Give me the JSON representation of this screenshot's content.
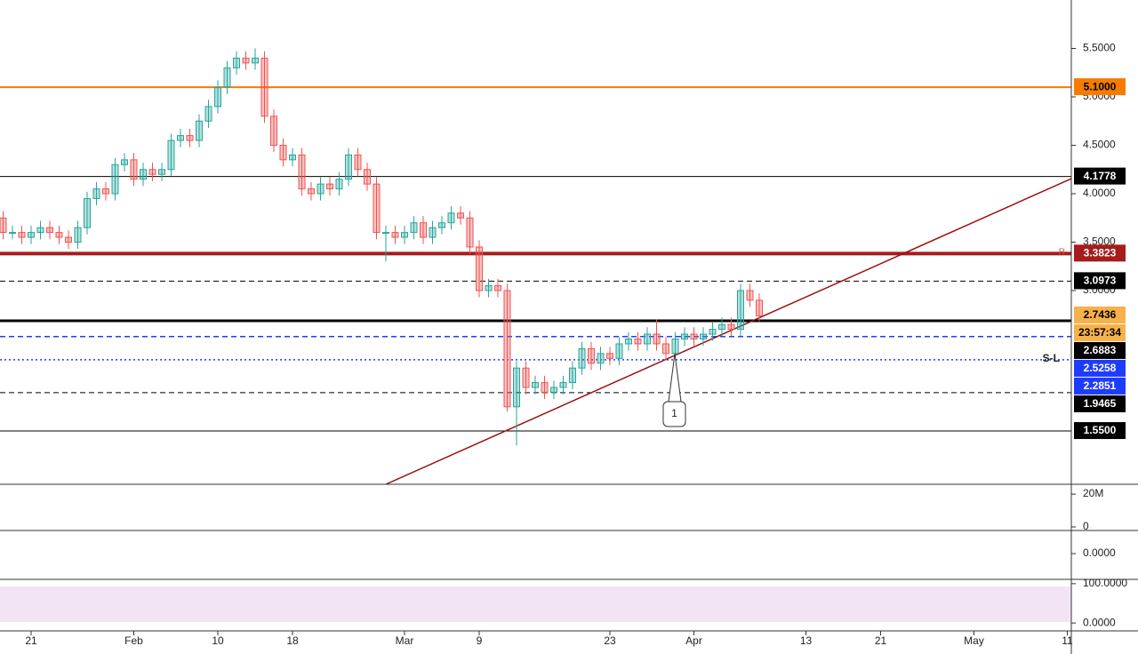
{
  "chart_data": {
    "type": "candlestick",
    "x": [
      "Jan 17",
      "Jan 18",
      "Jan 19",
      "Jan 20",
      "Jan 21",
      "Jan 22",
      "Jan 23",
      "Jan 24",
      "Jan 25",
      "Jan 26",
      "Jan 27",
      "Jan 28",
      "Jan 29",
      "Jan 30",
      "Jan 31",
      "Feb 1",
      "Feb 2",
      "Feb 3",
      "Feb 4",
      "Feb 5",
      "Feb 6",
      "Feb 7",
      "Feb 8",
      "Feb 9",
      "Feb 10",
      "Feb 11",
      "Feb 12",
      "Feb 13",
      "Feb 14",
      "Feb 15",
      "Feb 16",
      "Feb 17",
      "Feb 18",
      "Feb 19",
      "Feb 20",
      "Feb 21",
      "Feb 22",
      "Feb 23",
      "Feb 24",
      "Feb 25",
      "Feb 26",
      "Feb 27",
      "Feb 28",
      "Feb 29",
      "Mar 1",
      "Mar 2",
      "Mar 3",
      "Mar 4",
      "Mar 5",
      "Mar 6",
      "Mar 7",
      "Mar 8",
      "Mar 9",
      "Mar 10",
      "Mar 11",
      "Mar 12",
      "Mar 13",
      "Mar 14",
      "Mar 15",
      "Mar 16",
      "Mar 17",
      "Mar 18",
      "Mar 19",
      "Mar 20",
      "Mar 21",
      "Mar 22",
      "Mar 23",
      "Mar 24",
      "Mar 25",
      "Mar 26",
      "Mar 27",
      "Mar 28",
      "Mar 29",
      "Mar 30",
      "Mar 31",
      "Apr 1",
      "Apr 2",
      "Apr 3",
      "Apr 4",
      "Apr 5",
      "Apr 6",
      "Apr 7",
      "Apr 8"
    ],
    "open": [
      3.85,
      3.75,
      3.6,
      3.6,
      3.55,
      3.6,
      3.65,
      3.6,
      3.55,
      3.5,
      3.65,
      3.95,
      4.05,
      4.0,
      4.3,
      4.35,
      4.15,
      4.25,
      4.2,
      4.25,
      4.55,
      4.6,
      4.55,
      4.75,
      4.9,
      5.1,
      5.3,
      5.4,
      5.35,
      5.4,
      4.8,
      4.5,
      4.35,
      4.4,
      4.05,
      4.0,
      4.1,
      4.05,
      4.15,
      4.4,
      4.25,
      4.1,
      3.6,
      3.6,
      3.55,
      3.6,
      3.7,
      3.55,
      3.65,
      3.7,
      3.8,
      3.75,
      3.45,
      3.0,
      3.05,
      3.0,
      1.8,
      2.2,
      2.0,
      2.05,
      1.95,
      2.0,
      2.05,
      2.2,
      2.4,
      2.25,
      2.35,
      2.3,
      2.45,
      2.5,
      2.45,
      2.55,
      2.45,
      2.35,
      2.5,
      2.55,
      2.5,
      2.55,
      2.6,
      2.65,
      2.6,
      3.0,
      2.9
    ],
    "high": [
      3.92,
      3.82,
      3.67,
      3.67,
      3.67,
      3.72,
      3.72,
      3.67,
      3.62,
      3.72,
      4.02,
      4.12,
      4.12,
      4.37,
      4.42,
      4.42,
      4.32,
      4.32,
      4.32,
      4.62,
      4.67,
      4.67,
      4.82,
      4.97,
      5.17,
      5.37,
      5.47,
      5.47,
      5.5,
      5.47,
      4.87,
      4.57,
      4.47,
      4.47,
      4.12,
      4.17,
      4.17,
      4.22,
      4.47,
      4.47,
      4.32,
      4.17,
      3.67,
      3.67,
      3.67,
      3.77,
      3.77,
      3.72,
      3.77,
      3.87,
      3.87,
      3.82,
      3.52,
      3.12,
      3.12,
      3.07,
      2.27,
      2.27,
      2.12,
      2.12,
      2.07,
      2.12,
      2.27,
      2.47,
      2.47,
      2.42,
      2.42,
      2.52,
      2.57,
      2.57,
      2.62,
      2.7,
      2.52,
      2.57,
      2.62,
      2.62,
      2.62,
      2.67,
      2.72,
      2.72,
      3.07,
      3.07,
      2.97
    ],
    "low": [
      3.68,
      3.53,
      3.53,
      3.48,
      3.48,
      3.53,
      3.53,
      3.48,
      3.43,
      3.43,
      3.58,
      3.88,
      3.93,
      3.93,
      4.23,
      4.08,
      4.08,
      4.13,
      4.13,
      4.18,
      4.48,
      4.48,
      4.48,
      4.68,
      4.83,
      5.03,
      5.23,
      5.28,
      5.28,
      4.73,
      4.43,
      4.28,
      4.28,
      3.98,
      3.93,
      3.93,
      3.98,
      3.98,
      4.08,
      4.18,
      4.03,
      3.53,
      3.3,
      3.48,
      3.48,
      3.53,
      3.48,
      3.48,
      3.58,
      3.63,
      3.68,
      3.38,
      2.93,
      2.93,
      2.93,
      1.75,
      1.4,
      1.93,
      1.93,
      1.88,
      1.88,
      1.93,
      1.98,
      2.13,
      2.18,
      2.18,
      2.23,
      2.23,
      2.38,
      2.38,
      2.38,
      2.38,
      2.28,
      2.28,
      2.43,
      2.43,
      2.43,
      2.48,
      2.53,
      2.53,
      2.53,
      2.83,
      2.68
    ],
    "close": [
      3.75,
      3.6,
      3.6,
      3.55,
      3.6,
      3.65,
      3.6,
      3.55,
      3.5,
      3.65,
      3.95,
      4.05,
      4.0,
      4.3,
      4.35,
      4.15,
      4.25,
      4.2,
      4.25,
      4.55,
      4.6,
      4.55,
      4.75,
      4.9,
      5.1,
      5.3,
      5.4,
      5.35,
      5.4,
      4.8,
      4.5,
      4.35,
      4.4,
      4.05,
      4.0,
      4.1,
      4.05,
      4.15,
      4.4,
      4.25,
      4.1,
      3.6,
      3.6,
      3.55,
      3.6,
      3.7,
      3.55,
      3.65,
      3.7,
      3.8,
      3.75,
      3.45,
      3.0,
      3.05,
      3.0,
      1.8,
      2.2,
      2.0,
      2.05,
      1.95,
      2.0,
      2.05,
      2.2,
      2.4,
      2.25,
      2.35,
      2.3,
      2.45,
      2.5,
      2.45,
      2.55,
      2.45,
      2.35,
      2.5,
      2.55,
      2.5,
      2.55,
      2.6,
      2.65,
      2.6,
      3.0,
      2.9,
      2.74
    ],
    "up_color": "#26a69a",
    "down_color": "#ef5350",
    "ylim": [
      1,
      6
    ],
    "yticks": [
      {
        "value": 5.5,
        "label": "5.5000"
      },
      {
        "value": 5,
        "label": "5.0000"
      },
      {
        "value": 4.5,
        "label": "4.5000"
      },
      {
        "value": 4,
        "label": "4.0000"
      },
      {
        "value": 3.5,
        "label": "3.5000"
      },
      {
        "value": 3,
        "label": "3.0000"
      }
    ],
    "xticks": [
      {
        "value": "Jan 21",
        "label": "21"
      },
      {
        "value": "Feb 1",
        "label": "Feb"
      },
      {
        "value": "Feb 10",
        "label": "10"
      },
      {
        "value": "Feb 18",
        "label": "18"
      },
      {
        "value": "Mar 1",
        "label": "Mar"
      },
      {
        "value": "Mar 9",
        "label": "9"
      },
      {
        "value": "Mar 23",
        "label": "23"
      },
      {
        "value": "Apr 1",
        "label": "Apr"
      },
      {
        "value": "Apr 13",
        "label": "13"
      },
      {
        "value": "Apr 21",
        "label": "21"
      },
      {
        "value": "May 1",
        "label": "May"
      },
      {
        "value": "May 11",
        "label": "11"
      }
    ],
    "levels": [
      {
        "value": 5.1,
        "label": "5.1000",
        "color": "#f57c00",
        "text_color": "#000",
        "style": "solid",
        "width": 2,
        "line": true
      },
      {
        "value": 4.1778,
        "label": "4.1778",
        "color": "#000",
        "text_color": "#fff",
        "style": "solid",
        "width": 1,
        "line": true
      },
      {
        "value": 3.3823,
        "label": "3.3823",
        "color": "#a61c1c",
        "text_color": "#fff",
        "style": "solid",
        "width": 4,
        "line": true
      },
      {
        "value": 3.0973,
        "label": "3.0973",
        "color": "#000",
        "text_color": "#fff",
        "style": "dashed",
        "width": 1,
        "line": true
      },
      {
        "value": 2.7436,
        "label": "2.7436",
        "color": "#f7b14a",
        "text_color": "#000",
        "style": "solid",
        "width": 1,
        "line": false
      },
      {
        "value": 2.6883,
        "label": "2.6883",
        "color": "#000",
        "text_color": "#fff",
        "style": "solid",
        "width": 3,
        "line": true
      },
      {
        "value": 2.5258,
        "label": "2.5258",
        "color": "#1e3cff",
        "text_color": "#fff",
        "style": "dashed",
        "width": 1.5,
        "line": true
      },
      {
        "value": 2.2851,
        "label": "2.2851",
        "color": "#1e3cff",
        "text_color": "#fff",
        "style": "dotted",
        "width": 1.5,
        "line": true
      },
      {
        "value": 1.9465,
        "label": "1.9465",
        "color": "#000",
        "text_color": "#fff",
        "style": "dashed",
        "width": 1,
        "line": true
      },
      {
        "value": 1.55,
        "label": "1.5500",
        "color": "#000",
        "text_color": "#fff",
        "style": "solid",
        "width": 1,
        "line": true
      }
    ],
    "countdown": "23:57:34",
    "trendline": {
      "x": [
        "Feb 28",
        "May 12"
      ],
      "y": [
        1.0,
        4.18
      ],
      "color": "#9b1010"
    },
    "annotations": {
      "stop_loss": "S-L",
      "resistance": "R",
      "callout": "1"
    },
    "volume_ylim": [
      0,
      26000000
    ],
    "volume_yticks": [
      {
        "value": 20000000,
        "label": "20M"
      },
      0
    ],
    "macd_ylim": [
      -0.5,
      0.5
    ],
    "macd_yticks": [
      {
        "value": 0,
        "label": "0.0000"
      }
    ],
    "rsi_ylim": [
      -20,
      111
    ],
    "rsi_yticks": [
      {
        "value": 100,
        "label": "100.0000"
      },
      {
        "value": 0,
        "label": "0.0000"
      }
    ]
  }
}
